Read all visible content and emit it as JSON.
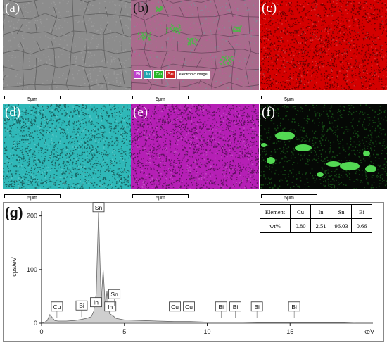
{
  "panels": [
    {
      "label": "(a)",
      "scale": "5μm",
      "kind": "sem"
    },
    {
      "label": "(b)",
      "scale": "5μm",
      "kind": "overlay"
    },
    {
      "label": "(c)",
      "scale": "5μm",
      "kind": "map",
      "color": "#d40000"
    },
    {
      "label": "(d)",
      "scale": "5μm",
      "kind": "map",
      "color": "#2fb8b8"
    },
    {
      "label": "(e)",
      "scale": "5μm",
      "kind": "map",
      "color": "#b51fb5"
    },
    {
      "label": "(f)",
      "scale": "",
      "kind": "sparse",
      "color": "#32c032"
    }
  ],
  "overlay_legend": [
    {
      "text": "Bi",
      "color": "#c040d0"
    },
    {
      "text": "In",
      "color": "#20a8b0"
    },
    {
      "text": "Cu",
      "color": "#28b828"
    },
    {
      "text": "Sn",
      "color": "#d02020"
    },
    {
      "text": "electronic image",
      "color": "#ffffff"
    }
  ],
  "table_scale_label": "5μm",
  "composition_table": {
    "header": [
      "Element",
      "Cu",
      "In",
      "Sn",
      "Bi"
    ],
    "row": [
      "wt%",
      "0.80",
      "2.51",
      "96.03",
      "0.66"
    ]
  },
  "chart_data": {
    "type": "area",
    "label": "(g)",
    "ylabel": "cps/eV",
    "xlabel": "keV",
    "xlim": [
      0,
      20
    ],
    "ylim": [
      0,
      210
    ],
    "xticks": [
      0,
      5,
      10,
      15
    ],
    "yticks": [
      0,
      100,
      200
    ],
    "x": [
      0,
      0.2,
      0.35,
      0.5,
      0.8,
      1.0,
      1.5,
      2.0,
      2.4,
      2.7,
      3.0,
      3.15,
      3.3,
      3.44,
      3.6,
      3.72,
      3.85,
      3.95,
      4.1,
      4.3,
      4.5,
      5.0,
      6,
      7,
      8,
      9,
      10,
      11,
      12,
      13,
      14,
      15,
      16,
      17,
      18,
      19,
      20
    ],
    "y": [
      0,
      2,
      5,
      16,
      5,
      4,
      4,
      5,
      7,
      9,
      12,
      22,
      55,
      205,
      40,
      100,
      30,
      60,
      18,
      14,
      9,
      6,
      5,
      4,
      3,
      3,
      2,
      2,
      2,
      1,
      1,
      1,
      1,
      1,
      1,
      0,
      0
    ],
    "annotations": [
      {
        "text": "Sn",
        "x": 3.44,
        "y": 205
      },
      {
        "text": "Cu",
        "x": 0.93,
        "y": 20
      },
      {
        "text": "Bi",
        "x": 2.42,
        "y": 22
      },
      {
        "text": "In",
        "x": 3.29,
        "y": 28
      },
      {
        "text": "In",
        "x": 4.15,
        "y": 20
      },
      {
        "text": "Sn",
        "x": 4.4,
        "y": 43
      },
      {
        "text": "Cu",
        "x": 8.05,
        "y": 20
      },
      {
        "text": "Cu",
        "x": 8.9,
        "y": 20
      },
      {
        "text": "Bi",
        "x": 10.84,
        "y": 20
      },
      {
        "text": "Bi",
        "x": 11.7,
        "y": 20
      },
      {
        "text": "Bi",
        "x": 13.0,
        "y": 20
      },
      {
        "text": "Bi",
        "x": 15.25,
        "y": 20
      }
    ]
  }
}
